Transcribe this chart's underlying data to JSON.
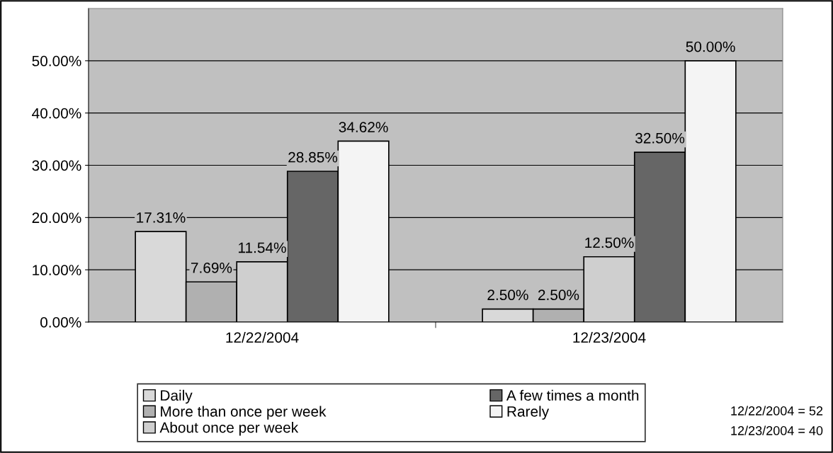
{
  "chart_data": {
    "type": "bar",
    "categories": [
      "12/22/2004",
      "12/23/2004"
    ],
    "series": [
      {
        "name": "Daily",
        "color": "#d9d9d9",
        "values": [
          17.31,
          2.5
        ],
        "value_labels": [
          "17.31%",
          "2.50%"
        ]
      },
      {
        "name": "More than once per week",
        "color": "#b0b0b0",
        "values": [
          7.69,
          2.5
        ],
        "value_labels": [
          "7.69%",
          "2.50%"
        ]
      },
      {
        "name": "About once per week",
        "color": "#cfcfcf",
        "values": [
          11.54,
          12.5
        ],
        "value_labels": [
          "11.54%",
          "12.50%"
        ]
      },
      {
        "name": "A few times a month",
        "color": "#666666",
        "values": [
          28.85,
          32.5
        ],
        "value_labels": [
          "28.85%",
          "32.50%"
        ]
      },
      {
        "name": "Rarely",
        "color": "#f4f4f4",
        "values": [
          34.62,
          50.0
        ],
        "value_labels": [
          "34.62%",
          "50.00%"
        ]
      }
    ],
    "ylim": [
      0,
      60
    ],
    "yticks": [
      {
        "value": 0,
        "label": "0.00%"
      },
      {
        "value": 10,
        "label": "10.00%"
      },
      {
        "value": 20,
        "label": "20.00%"
      },
      {
        "value": 30,
        "label": "30.00%"
      },
      {
        "value": 40,
        "label": "40.00%"
      },
      {
        "value": 50,
        "label": "50.00%"
      }
    ],
    "grid": "y",
    "legend": "bottom",
    "annotations": [
      "12/22/2004 = 52",
      "12/23/2004 = 40"
    ]
  }
}
